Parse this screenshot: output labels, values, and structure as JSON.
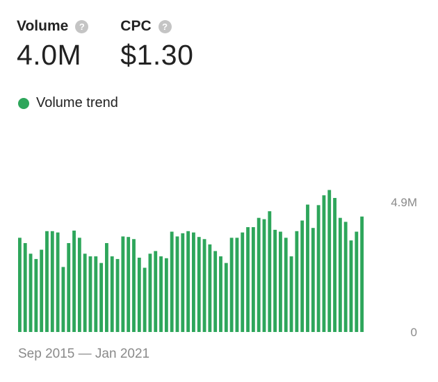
{
  "metrics": [
    {
      "label": "Volume",
      "value": "4.0M"
    },
    {
      "label": "CPC",
      "value": "$1.30"
    }
  ],
  "help_glyph": "?",
  "legend": {
    "label": "Volume trend",
    "color": "#2ea65b"
  },
  "date_range": "Sep 2015 — Jan 2021",
  "chart_data": {
    "type": "bar",
    "series": [
      {
        "name": "Volume trend",
        "color": "#2ea65b",
        "values": [
          3.55,
          3.35,
          2.95,
          2.75,
          3.1,
          3.8,
          3.8,
          3.75,
          2.45,
          3.35,
          3.82,
          3.55,
          2.95,
          2.85,
          2.85,
          2.6,
          3.35,
          2.85,
          2.75,
          3.6,
          3.58,
          3.5,
          2.8,
          2.42,
          2.95,
          3.05,
          2.85,
          2.78,
          3.78,
          3.6,
          3.72,
          3.8,
          3.75,
          3.58,
          3.5,
          3.3,
          3.05,
          2.85,
          2.6,
          3.55,
          3.55,
          3.75,
          3.95,
          3.95,
          4.3,
          4.25,
          4.55,
          3.85,
          3.78,
          3.55,
          2.85,
          3.8,
          4.2,
          4.8,
          3.92,
          4.78,
          5.15,
          5.35,
          5.05,
          4.3,
          4.15,
          3.45,
          3.78,
          4.35
        ]
      }
    ],
    "y_ticks": [
      {
        "value": 4.9,
        "label": "4.9M"
      },
      {
        "value": 0,
        "label": "0"
      }
    ],
    "ylim": [
      0,
      5.6
    ],
    "grid": false,
    "legend_position": "top-left"
  }
}
